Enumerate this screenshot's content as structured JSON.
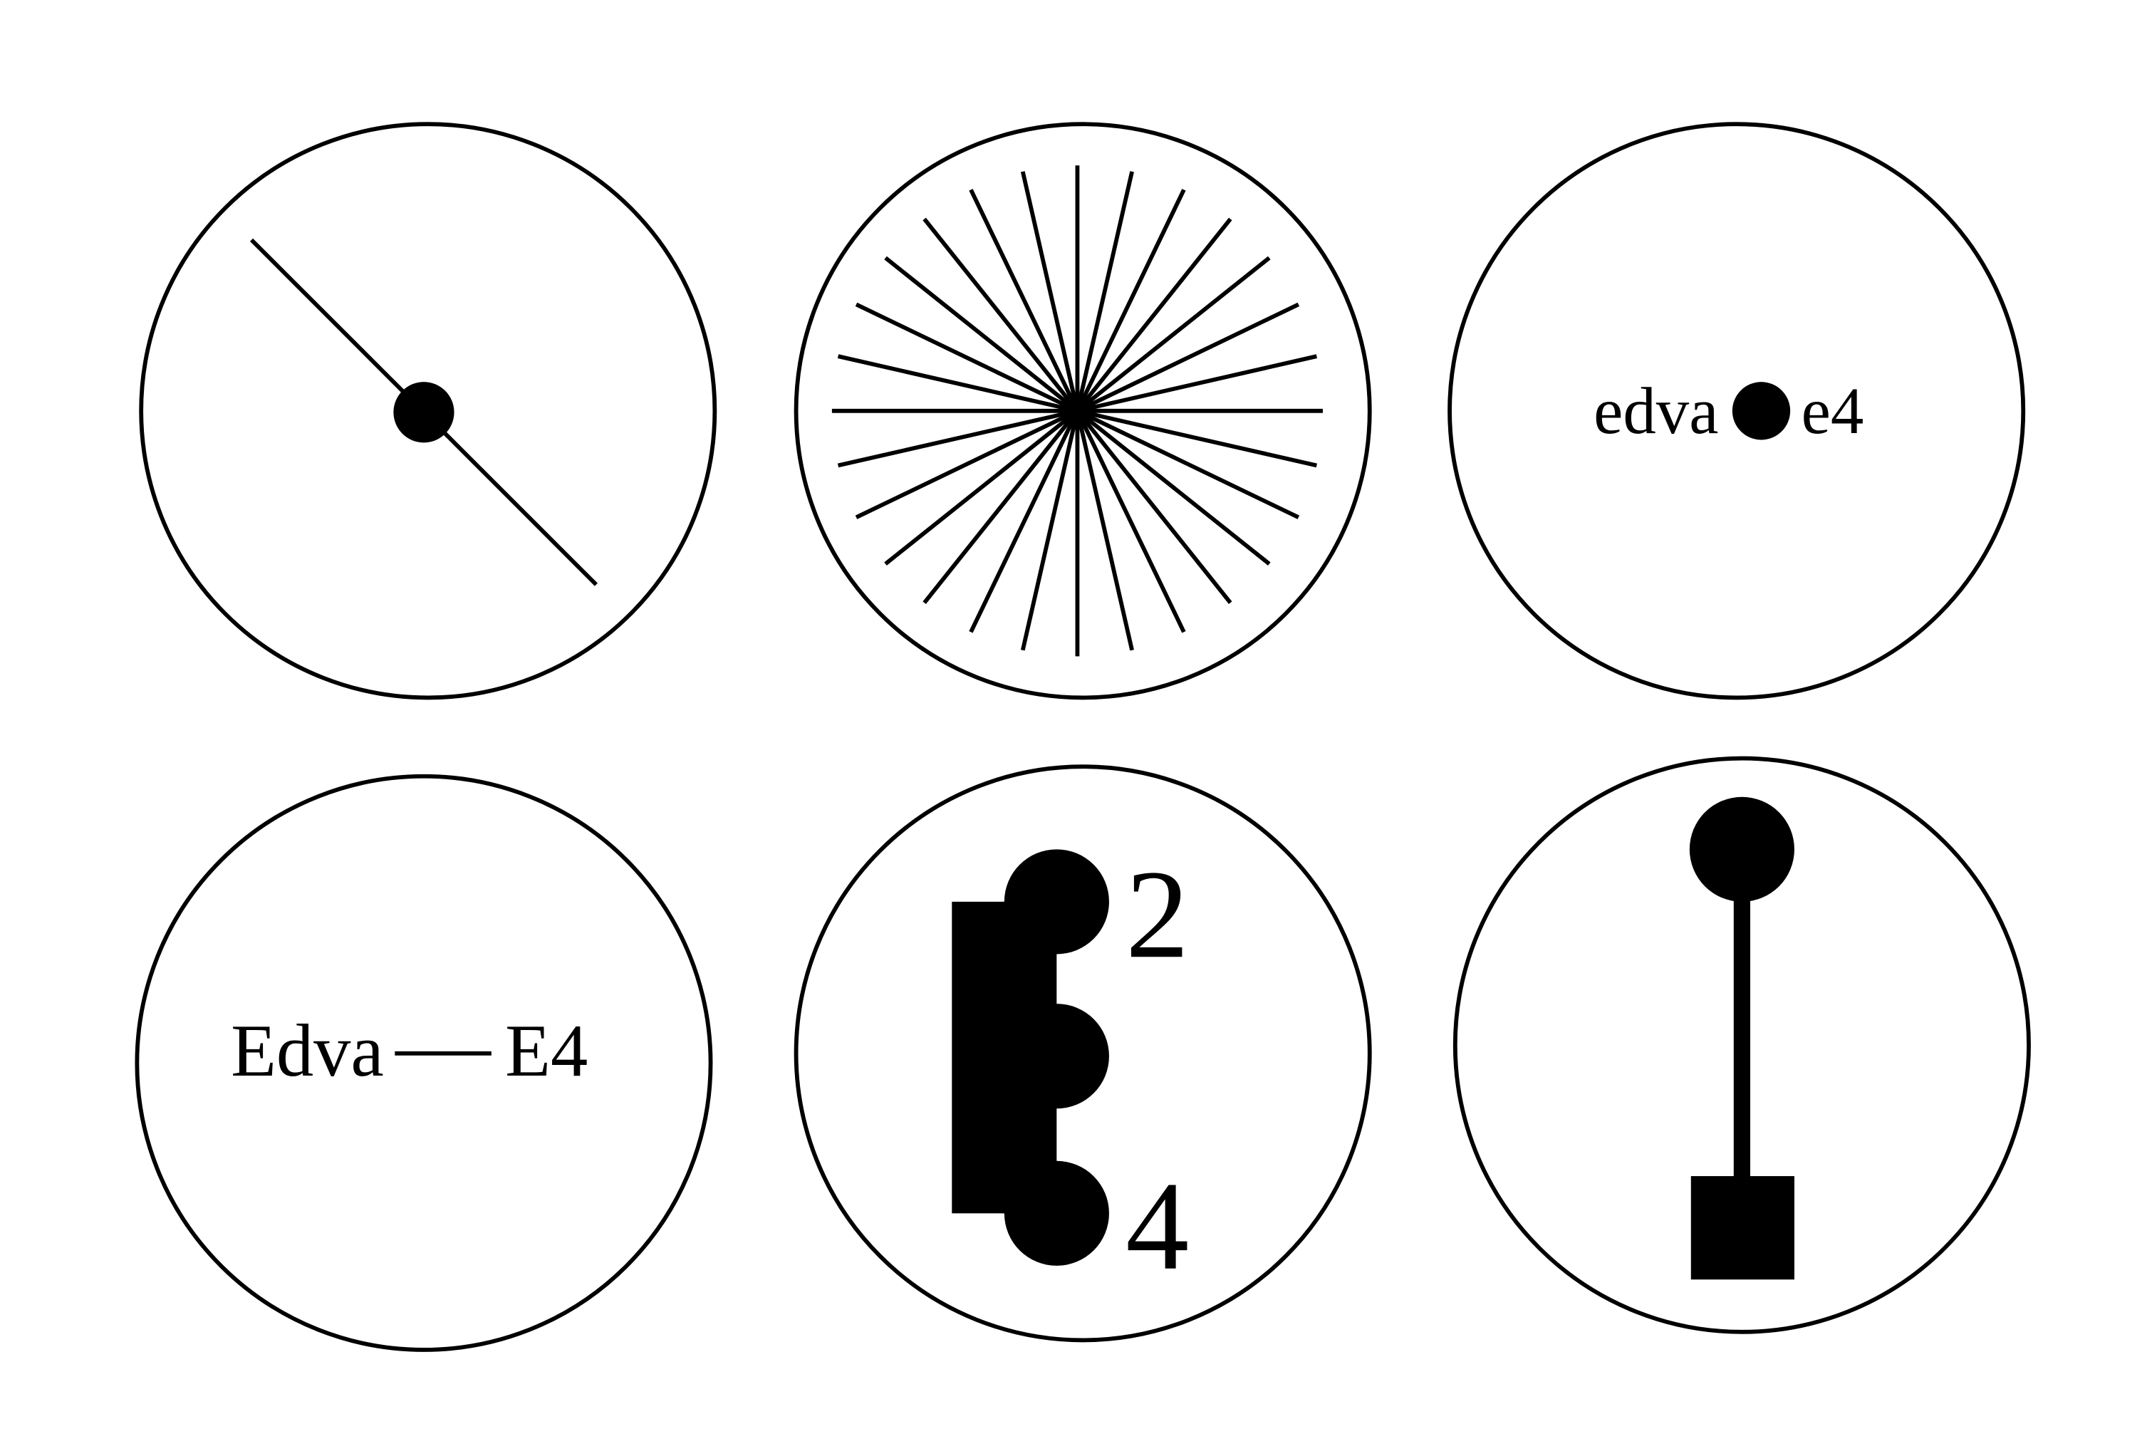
{
  "diagram": {
    "ink_color": "#000000",
    "background_color": "#ffffff",
    "spoke_count": 28,
    "labels": {
      "edva_lower": "edva",
      "e4_lower": "e4",
      "edva_upper": "Edva",
      "e4_upper": "E4",
      "exponent_two": "2",
      "exponent_four": "4"
    }
  }
}
